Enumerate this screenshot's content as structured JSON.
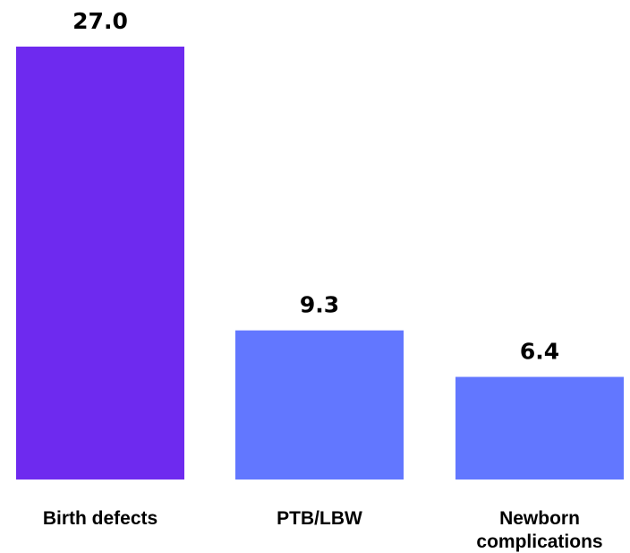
{
  "chart_data": {
    "type": "bar",
    "title": "",
    "xlabel": "",
    "ylabel": "",
    "categories": [
      "Birth defects",
      "PTB/LBW",
      "Newborn complications"
    ],
    "category_lines": [
      [
        "Birth defects"
      ],
      [
        "PTB/LBW"
      ],
      [
        "Newborn",
        "complications"
      ]
    ],
    "values": [
      27.0,
      9.3,
      6.4
    ],
    "value_labels": [
      "27.0",
      "9.3",
      "6.4"
    ],
    "colors": [
      "#6e2aef",
      "#6277ff",
      "#6277ff"
    ],
    "ylim": [
      0,
      27.0
    ],
    "grid": false,
    "legend": "none"
  }
}
